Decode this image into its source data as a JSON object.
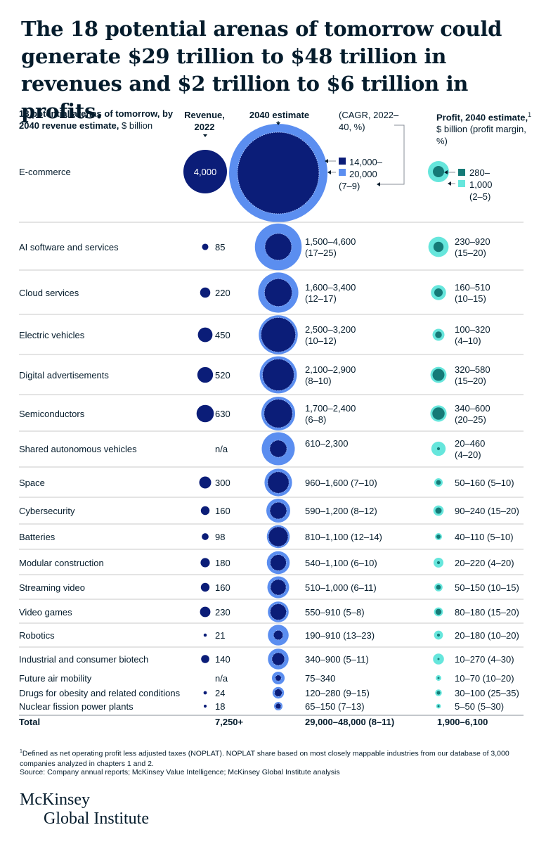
{
  "title": "The 18 potential arenas of tomorrow could generate $29 trillion to $48 trillion in revenues and $2 trillion to $6 trillion in profits.",
  "headers": {
    "arenas_bold": "18 potential arenas of tomorrow, by 2040 revenue estimate,",
    "arenas_unit": "$ billion",
    "revenue": "Revenue, 2022",
    "estimate": "2040 estimate",
    "cagr": "(CAGR, 2022–40, %)",
    "profit_bold": "Profit, 2040 estimate,",
    "profit_sup": "1",
    "profit_unit": "$ billion (profit margin, %)"
  },
  "ecommerce": {
    "label": "E-commerce",
    "rev2022": "4,000",
    "est_line1": "14,000–",
    "est_line2": "20,000",
    "est_line3": "(7–9)",
    "profit_line1": "280–",
    "profit_line2": "1,000",
    "profit_line3": "(2–5)"
  },
  "totals": {
    "label": "Total",
    "rev2022": "7,250+",
    "est": "29,000–48,000 (8–11)",
    "profit": "1,900–6,100"
  },
  "footnote": "Defined as net operating profit less adjusted taxes (NOPLAT). NOPLAT share based on most closely mappable industries from our database of 3,000 companies analyzed in chapters 1 and 2.",
  "footnote_mark": "1",
  "source": "Source: Company annual reports; McKinsey Value Intelligence; McKinsey Global Institute analysis",
  "logo": {
    "line1": "McKinsey",
    "line2": "Global Institute"
  },
  "colors": {
    "navy": "#0b1d78",
    "blue": "#5b8ef0",
    "teal": "#157a77",
    "aqua": "#66e6dc",
    "rule": "#c8c8c8"
  },
  "chart_data": {
    "type": "table",
    "units": "$ billion",
    "columns": [
      "Arena",
      "Revenue, 2022",
      "2040 revenue estimate low",
      "2040 revenue estimate high",
      "CAGR 2022–40 (%)",
      "Profit 2040 low",
      "Profit 2040 high",
      "Profit margin (%)"
    ],
    "rows": [
      {
        "arena": "E-commerce",
        "rev2022": 4000,
        "rev2022_text": "4,000",
        "est_low": 14000,
        "est_high": 20000,
        "est_text": "14,000–20,000",
        "cagr": "(7–9)",
        "profit_low": 280,
        "profit_high": 1000,
        "profit_text": "280–1,000",
        "margin": "(2–5)"
      },
      {
        "arena": "AI software and services",
        "rev2022": 85,
        "rev2022_text": "85",
        "est_low": 1500,
        "est_high": 4600,
        "est_text": "1,500–4,600",
        "cagr": "(17–25)",
        "profit_low": 230,
        "profit_high": 920,
        "profit_text": "230–920",
        "margin": "(15–20)"
      },
      {
        "arena": "Cloud services",
        "rev2022": 220,
        "rev2022_text": "220",
        "est_low": 1600,
        "est_high": 3400,
        "est_text": "1,600–3,400",
        "cagr": "(12–17)",
        "profit_low": 160,
        "profit_high": 510,
        "profit_text": "160–510",
        "margin": "(10–15)"
      },
      {
        "arena": "Electric vehicles",
        "rev2022": 450,
        "rev2022_text": "450",
        "est_low": 2500,
        "est_high": 3200,
        "est_text": "2,500–3,200",
        "cagr": "(10–12)",
        "profit_low": 100,
        "profit_high": 320,
        "profit_text": "100–320",
        "margin": "(4–10)"
      },
      {
        "arena": "Digital advertisements",
        "rev2022": 520,
        "rev2022_text": "520",
        "est_low": 2100,
        "est_high": 2900,
        "est_text": "2,100–2,900",
        "cagr": "(8–10)",
        "profit_low": 320,
        "profit_high": 580,
        "profit_text": "320–580",
        "margin": "(15–20)"
      },
      {
        "arena": "Semiconductors",
        "rev2022": 630,
        "rev2022_text": "630",
        "est_low": 1700,
        "est_high": 2400,
        "est_text": "1,700–2,400",
        "cagr": "(6–8)",
        "profit_low": 340,
        "profit_high": 600,
        "profit_text": "340–600",
        "margin": "(20–25)"
      },
      {
        "arena": "Shared autonomous vehicles",
        "rev2022": null,
        "rev2022_text": "n/a",
        "est_low": 610,
        "est_high": 2300,
        "est_text": "610–2,300",
        "cagr": "",
        "profit_low": 20,
        "profit_high": 460,
        "profit_text": "20–460",
        "margin": "(4–20)"
      },
      {
        "arena": "Space",
        "rev2022": 300,
        "rev2022_text": "300",
        "est_low": 960,
        "est_high": 1600,
        "est_text": "960–1,600",
        "cagr": "(7–10)",
        "profit_low": 50,
        "profit_high": 160,
        "profit_text": "50–160",
        "margin": "(5–10)"
      },
      {
        "arena": "Cybersecurity",
        "rev2022": 160,
        "rev2022_text": "160",
        "est_low": 590,
        "est_high": 1200,
        "est_text": "590–1,200",
        "cagr": "(8–12)",
        "profit_low": 90,
        "profit_high": 240,
        "profit_text": "90–240",
        "margin": "(15–20)"
      },
      {
        "arena": "Batteries",
        "rev2022": 98,
        "rev2022_text": "98",
        "est_low": 810,
        "est_high": 1100,
        "est_text": "810–1,100",
        "cagr": "(12–14)",
        "profit_low": 40,
        "profit_high": 110,
        "profit_text": "40–110",
        "margin": "(5–10)"
      },
      {
        "arena": "Modular construction",
        "rev2022": 180,
        "rev2022_text": "180",
        "est_low": 540,
        "est_high": 1100,
        "est_text": "540–1,100",
        "cagr": "(6–10)",
        "profit_low": 20,
        "profit_high": 220,
        "profit_text": "20–220",
        "margin": "(4–20)"
      },
      {
        "arena": "Streaming video",
        "rev2022": 160,
        "rev2022_text": "160",
        "est_low": 510,
        "est_high": 1000,
        "est_text": "510–1,000",
        "cagr": "(6–11)",
        "profit_low": 50,
        "profit_high": 150,
        "profit_text": "50–150",
        "margin": "(10–15)"
      },
      {
        "arena": "Video games",
        "rev2022": 230,
        "rev2022_text": "230",
        "est_low": 550,
        "est_high": 910,
        "est_text": "550–910",
        "cagr": "(5–8)",
        "profit_low": 80,
        "profit_high": 180,
        "profit_text": "80–180",
        "margin": "(15–20)"
      },
      {
        "arena": "Robotics",
        "rev2022": 21,
        "rev2022_text": "21",
        "est_low": 190,
        "est_high": 910,
        "est_text": "190–910",
        "cagr": "(13–23)",
        "profit_low": 20,
        "profit_high": 180,
        "profit_text": "20–180",
        "margin": "(10–20)"
      },
      {
        "arena": "Industrial and consumer biotech",
        "rev2022": 140,
        "rev2022_text": "140",
        "est_low": 340,
        "est_high": 900,
        "est_text": "340–900",
        "cagr": "(5–11)",
        "profit_low": 10,
        "profit_high": 270,
        "profit_text": "10–270",
        "margin": "(4–30)"
      },
      {
        "arena": "Future air mobility",
        "rev2022": null,
        "rev2022_text": "n/a",
        "est_low": 75,
        "est_high": 340,
        "est_text": "75–340",
        "cagr": "",
        "profit_low": 10,
        "profit_high": 70,
        "profit_text": "10–70",
        "margin": "(10–20)"
      },
      {
        "arena": "Drugs for obesity and related conditions",
        "rev2022": 24,
        "rev2022_text": "24",
        "est_low": 120,
        "est_high": 280,
        "est_text": "120–280",
        "cagr": "(9–15)",
        "profit_low": 30,
        "profit_high": 100,
        "profit_text": "30–100",
        "margin": "(25–35)"
      },
      {
        "arena": "Nuclear fission power plants",
        "rev2022": 18,
        "rev2022_text": "18",
        "est_low": 65,
        "est_high": 150,
        "est_text": "65–150",
        "cagr": "(7–13)",
        "profit_low": 5,
        "profit_high": 50,
        "profit_text": "5–50",
        "margin": "(5–30)"
      }
    ]
  }
}
